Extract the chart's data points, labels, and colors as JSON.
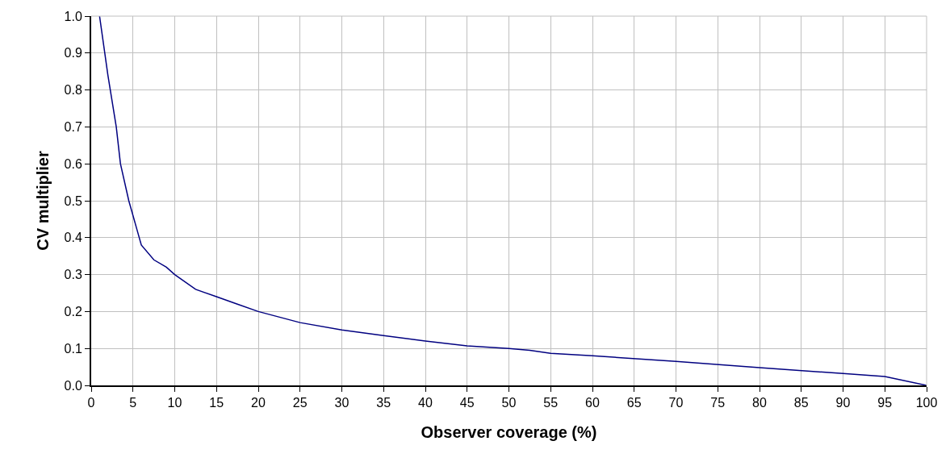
{
  "chart_data": {
    "type": "line",
    "xlabel": "Observer coverage (%)",
    "ylabel": "CV multiplier",
    "x": [
      1,
      1.5,
      2,
      3,
      3.5,
      4.5,
      5,
      5.5,
      6,
      7.5,
      9,
      10,
      12.5,
      15,
      17.5,
      20,
      25,
      30,
      35,
      40,
      45,
      50,
      52.5,
      55,
      60,
      70,
      80,
      90,
      95,
      100
    ],
    "series": [
      {
        "color": "#000080",
        "values": [
          1.0,
          0.92,
          0.84,
          0.7,
          0.6,
          0.5,
          0.46,
          0.42,
          0.38,
          0.34,
          0.32,
          0.3,
          0.26,
          0.24,
          0.22,
          0.2,
          0.17,
          0.15,
          0.135,
          0.12,
          0.107,
          0.1,
          0.095,
          0.087,
          0.08,
          0.065,
          0.048,
          0.032,
          0.024,
          0
        ]
      }
    ],
    "xlim": [
      0,
      100
    ],
    "xticks": [
      0,
      5,
      10,
      15,
      20,
      25,
      30,
      35,
      40,
      45,
      50,
      55,
      60,
      65,
      70,
      75,
      80,
      85,
      90,
      95,
      100
    ],
    "ylim": [
      0,
      1
    ],
    "yticks": [
      {
        "value": 0,
        "label": "0.0"
      },
      {
        "value": 0.1,
        "label": "0.1"
      },
      {
        "value": 0.2,
        "label": "0.2"
      },
      {
        "value": 0.3,
        "label": "0.3"
      },
      {
        "value": 0.4,
        "label": "0.4"
      },
      {
        "value": 0.5,
        "label": "0.5"
      },
      {
        "value": 0.6,
        "label": "0.6"
      },
      {
        "value": 0.7,
        "label": "0.7"
      },
      {
        "value": 0.8,
        "label": "0.8"
      },
      {
        "value": 0.9,
        "label": "0.9"
      },
      {
        "value": 1,
        "label": "1.0"
      }
    ],
    "grid": true,
    "marker": "none",
    "line_style": "solid"
  }
}
